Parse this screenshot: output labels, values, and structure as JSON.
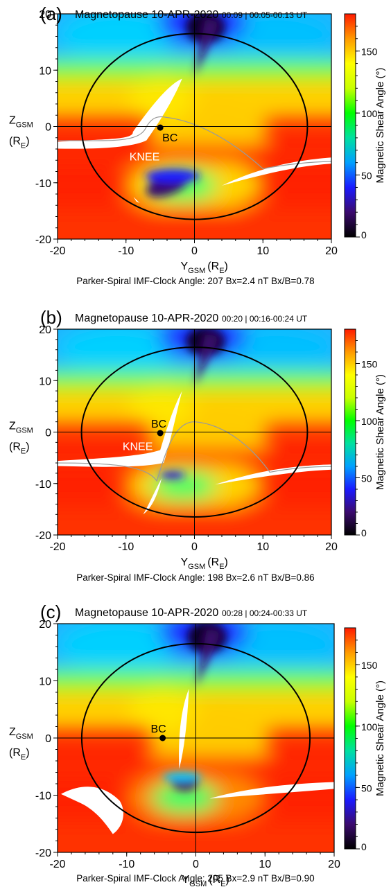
{
  "chart_data": [
    {
      "type": "heatmap",
      "panel_label": "(a)",
      "title": "Magnetopause 10-APR-2020",
      "time_label": "00:09 | 00:05-00:13 UT",
      "xlabel": "Y",
      "xlabel_sub": "GSM",
      "xlabel_unit": "(R",
      "xlabel_unit_sub": "E",
      "xlabel_unit_end": ")",
      "ylabel": "Z",
      "ylabel_sub": "GSM",
      "ylabel_unit": "(R",
      "ylabel_unit_sub": "E",
      "ylabel_unit_end": ")",
      "xlim": [
        -20,
        20
      ],
      "ylim": [
        -20,
        20
      ],
      "xticks": [
        -20,
        -10,
        0,
        10,
        20
      ],
      "yticks": [
        -20,
        -10,
        0,
        10,
        20
      ],
      "colorbar_label": "Magnetic Shear Angle (°)",
      "colorbar_range": [
        0,
        180
      ],
      "colorbar_ticks": [
        0,
        50,
        100,
        150
      ],
      "boundary_ellipse": {
        "center": [
          0,
          0
        ],
        "ry": 16.5,
        "rz": 16.5
      },
      "bc_point": {
        "label": "BC",
        "y": -5.0,
        "z": -0.2
      },
      "knee_label": {
        "text": "KNEE",
        "y": -9.5,
        "z": -6.0
      },
      "caption": "Parker-Spiral IMF-Clock Angle: 207  Bx=2.4 nT   Bx/B=0.78",
      "clock_angle": 207,
      "bx_nT": 2.4,
      "bx_over_b": 0.78
    },
    {
      "type": "heatmap",
      "panel_label": "(b)",
      "title": "Magnetopause 10-APR-2020",
      "time_label": "00:20 | 00:16-00:24 UT",
      "xlabel": "Y",
      "xlabel_sub": "GSM",
      "xlabel_unit": "(R",
      "xlabel_unit_sub": "E",
      "xlabel_unit_end": ")",
      "ylabel": "Z",
      "ylabel_sub": "GSM",
      "ylabel_unit": "(R",
      "ylabel_unit_sub": "E",
      "ylabel_unit_end": ")",
      "xlim": [
        -20,
        20
      ],
      "ylim": [
        -20,
        20
      ],
      "xticks": [
        -20,
        -10,
        0,
        10,
        20
      ],
      "yticks": [
        -20,
        -10,
        0,
        10,
        20
      ],
      "colorbar_label": "Magnetic Shear Angle (°)",
      "colorbar_range": [
        0,
        180
      ],
      "colorbar_ticks": [
        0,
        50,
        100,
        150
      ],
      "boundary_ellipse": {
        "center": [
          0,
          0
        ],
        "ry": 16.5,
        "rz": 16.5
      },
      "bc_point": {
        "label": "BC",
        "y": -5.0,
        "z": -0.2
      },
      "knee_label": {
        "text": "KNEE",
        "y": -10.5,
        "z": -3.5
      },
      "caption": "Parker-Spiral IMF-Clock Angle: 198  Bx=2.6 nT    Bx/B=0.86",
      "clock_angle": 198,
      "bx_nT": 2.6,
      "bx_over_b": 0.86
    },
    {
      "type": "heatmap",
      "panel_label": "(c)",
      "title": "Magnetopause 10-APR-2020",
      "time_label": "00:28 | 00:24-00:33 UT",
      "xlabel": "Y",
      "xlabel_sub": "GSM",
      "xlabel_unit": "(R",
      "xlabel_unit_sub": "E",
      "xlabel_unit_end": ")",
      "ylabel": "Z",
      "ylabel_sub": "GSM",
      "ylabel_unit": "(R",
      "ylabel_unit_sub": "E",
      "ylabel_unit_end": ")",
      "xlim": [
        -20,
        20
      ],
      "ylim": [
        -20,
        20
      ],
      "xticks": [
        -20,
        -10,
        0,
        10,
        20
      ],
      "yticks": [
        -20,
        -10,
        0,
        10,
        20
      ],
      "colorbar_label": "Magnetic Shear Angle (°)",
      "colorbar_range": [
        0,
        180
      ],
      "colorbar_ticks": [
        0,
        50,
        100,
        150
      ],
      "boundary_ellipse": {
        "center": [
          0,
          0
        ],
        "ry": 16.5,
        "rz": 16.5
      },
      "bc_point": {
        "label": "BC",
        "y": -4.8,
        "z": 0.0
      },
      "knee_label": null,
      "caption": "Parker-Spiral IMF-Clock Angle: 205  Bx=2.9 nT    Bx/B=0.90",
      "clock_angle": 205,
      "bx_nT": 2.9,
      "bx_over_b": 0.9
    }
  ],
  "colors": {
    "colormap": [
      "#000000",
      "#3b0a6e",
      "#1a1aff",
      "#00a0ff",
      "#00e0a0",
      "#00ff00",
      "#c8ff00",
      "#ffff00",
      "#ff9a00",
      "#ff1a00"
    ],
    "axis": "#000000",
    "ellipse": "#000000",
    "curve": "#9a9a9a",
    "null_region": "#ffffff"
  }
}
